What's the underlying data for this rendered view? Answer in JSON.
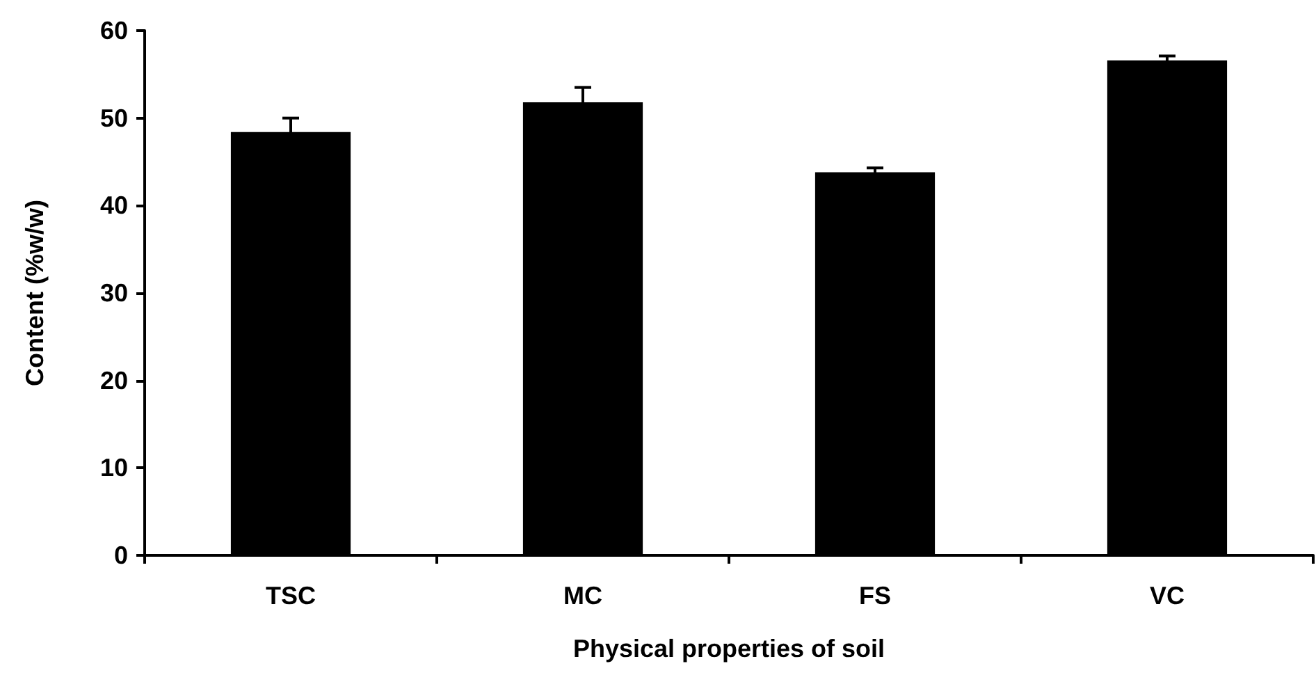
{
  "chart_data": {
    "type": "bar",
    "xlabel": "Physical properties of soil",
    "ylabel": "Content (%w/w)",
    "categories": [
      "TSC",
      "MC",
      "FS",
      "VC"
    ],
    "values": [
      48.4,
      51.8,
      43.8,
      56.6
    ],
    "errors": [
      1.6,
      1.7,
      0.5,
      0.5
    ],
    "color": "#000000",
    "ylim": [
      0,
      60
    ],
    "yticks": [
      0,
      10,
      20,
      30,
      40,
      50,
      60
    ],
    "grid": false
  }
}
